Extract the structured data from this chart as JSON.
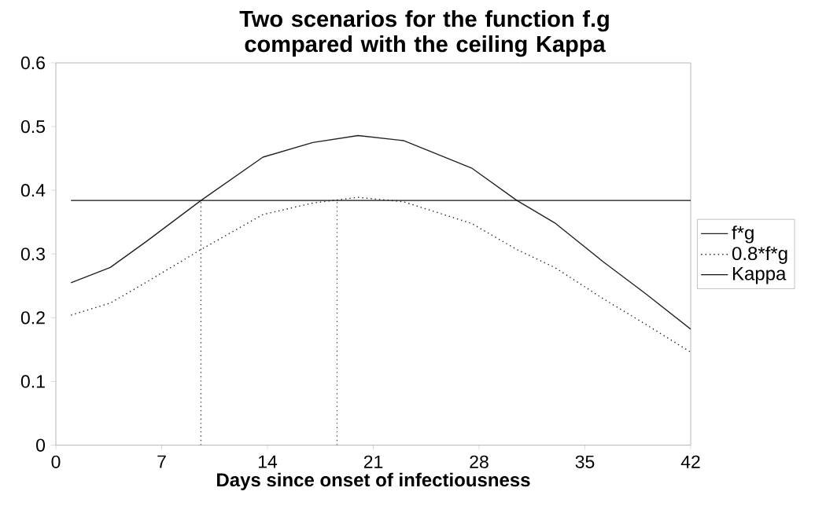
{
  "chart_data": {
    "type": "line",
    "title": "Two scenarios for the function f.g compared with the ceiling Kappa",
    "xlabel": "Days since onset of infectiousness",
    "xlim": [
      0,
      42
    ],
    "xticks": [
      0,
      7,
      14,
      21,
      28,
      35,
      42
    ],
    "ylim": [
      0,
      0.6
    ],
    "yticks": [
      0,
      0.1,
      0.2,
      0.3,
      0.4,
      0.5,
      0.6
    ],
    "grid": false,
    "legend": "right",
    "marker": "none",
    "series": [
      {
        "name": "f*g",
        "color": "#222222",
        "line_style": "solid",
        "x": [
          1,
          3.6,
          6,
          9.6,
          13.7,
          17,
          20,
          23,
          27.5,
          30.5,
          33,
          36.2,
          39,
          42
        ],
        "values": [
          0.255,
          0.279,
          0.32,
          0.384,
          0.452,
          0.475,
          0.486,
          0.478,
          0.435,
          0.384,
          0.349,
          0.288,
          0.238,
          0.182
        ]
      },
      {
        "name": "0.8*f*g",
        "color": "#222222",
        "line_style": "dotted",
        "x": [
          1,
          3.6,
          6,
          9.6,
          13.7,
          17,
          20,
          23,
          27.5,
          30.5,
          33,
          36.2,
          39,
          42
        ],
        "values": [
          0.204,
          0.223,
          0.256,
          0.307,
          0.362,
          0.38,
          0.389,
          0.382,
          0.348,
          0.307,
          0.279,
          0.23,
          0.19,
          0.146
        ]
      },
      {
        "name": "Kappa",
        "color": "#111111",
        "line_style": "solid",
        "x": [
          1,
          42
        ],
        "values": [
          0.384,
          0.384
        ]
      },
      {
        "color": "#444444",
        "line_style": "dotted",
        "x": [
          9.6,
          9.6
        ],
        "values": [
          0,
          0.384
        ]
      },
      {
        "color": "#444444",
        "line_style": "dotted",
        "x": [
          18.6,
          18.6
        ],
        "values": [
          0,
          0.384
        ]
      }
    ]
  }
}
